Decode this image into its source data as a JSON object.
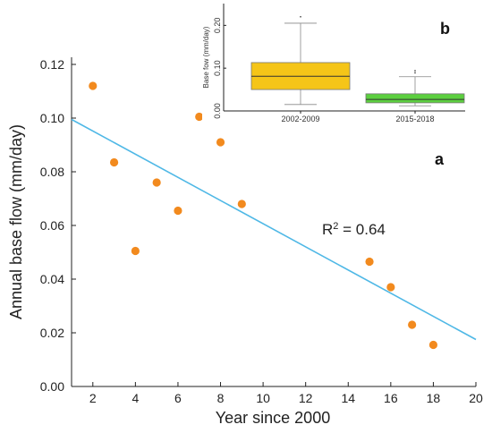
{
  "chart_data": [
    {
      "type": "scatter",
      "panel_label": "a",
      "xlabel": "Year since 2000",
      "ylabel": "Annual base flow (mm/day)",
      "xlim": [
        1,
        20
      ],
      "ylim": [
        0,
        0.12
      ],
      "xticks": [
        "2",
        "4",
        "6",
        "8",
        "10",
        "12",
        "14",
        "16",
        "18",
        "20"
      ],
      "yticks": [
        "0.00",
        "0.02",
        "0.04",
        "0.06",
        "0.08",
        "0.10",
        "0.12"
      ],
      "points": [
        {
          "x": 2,
          "y": 0.112
        },
        {
          "x": 3,
          "y": 0.0835
        },
        {
          "x": 4,
          "y": 0.0505
        },
        {
          "x": 5,
          "y": 0.076
        },
        {
          "x": 6,
          "y": 0.0655
        },
        {
          "x": 7,
          "y": 0.1005
        },
        {
          "x": 8,
          "y": 0.091
        },
        {
          "x": 9,
          "y": 0.068
        },
        {
          "x": 15,
          "y": 0.0465
        },
        {
          "x": 16,
          "y": 0.037
        },
        {
          "x": 17,
          "y": 0.023
        },
        {
          "x": 18,
          "y": 0.0155
        }
      ],
      "trendline": {
        "x": [
          1,
          20
        ],
        "y": [
          0.0995,
          0.0175
        ]
      },
      "annotation": {
        "prefix": "R",
        "sup": "2",
        "rest": " = 0.64"
      },
      "colors": {
        "points": "#f28a1e",
        "trendline": "#4fb8e6"
      },
      "grid": false
    },
    {
      "type": "box",
      "panel_label": "b",
      "ylabel": "Base fow (mm/day)",
      "ylim": [
        0,
        0.23
      ],
      "yticks": [
        "0.00",
        "0.10",
        "0.20"
      ],
      "categories": [
        "2002-2009",
        "2015-2018"
      ],
      "boxes": [
        {
          "min": 0.015,
          "q1": 0.05,
          "median": 0.081,
          "q3": 0.113,
          "max": 0.205,
          "outliers": [
            0.22
          ]
        },
        {
          "min": 0.012,
          "q1": 0.019,
          "median": 0.027,
          "q3": 0.04,
          "max": 0.08,
          "outliers": [
            0.089,
            0.094
          ]
        }
      ],
      "colors": [
        "#f5c518",
        "#5ccf3f"
      ]
    }
  ]
}
